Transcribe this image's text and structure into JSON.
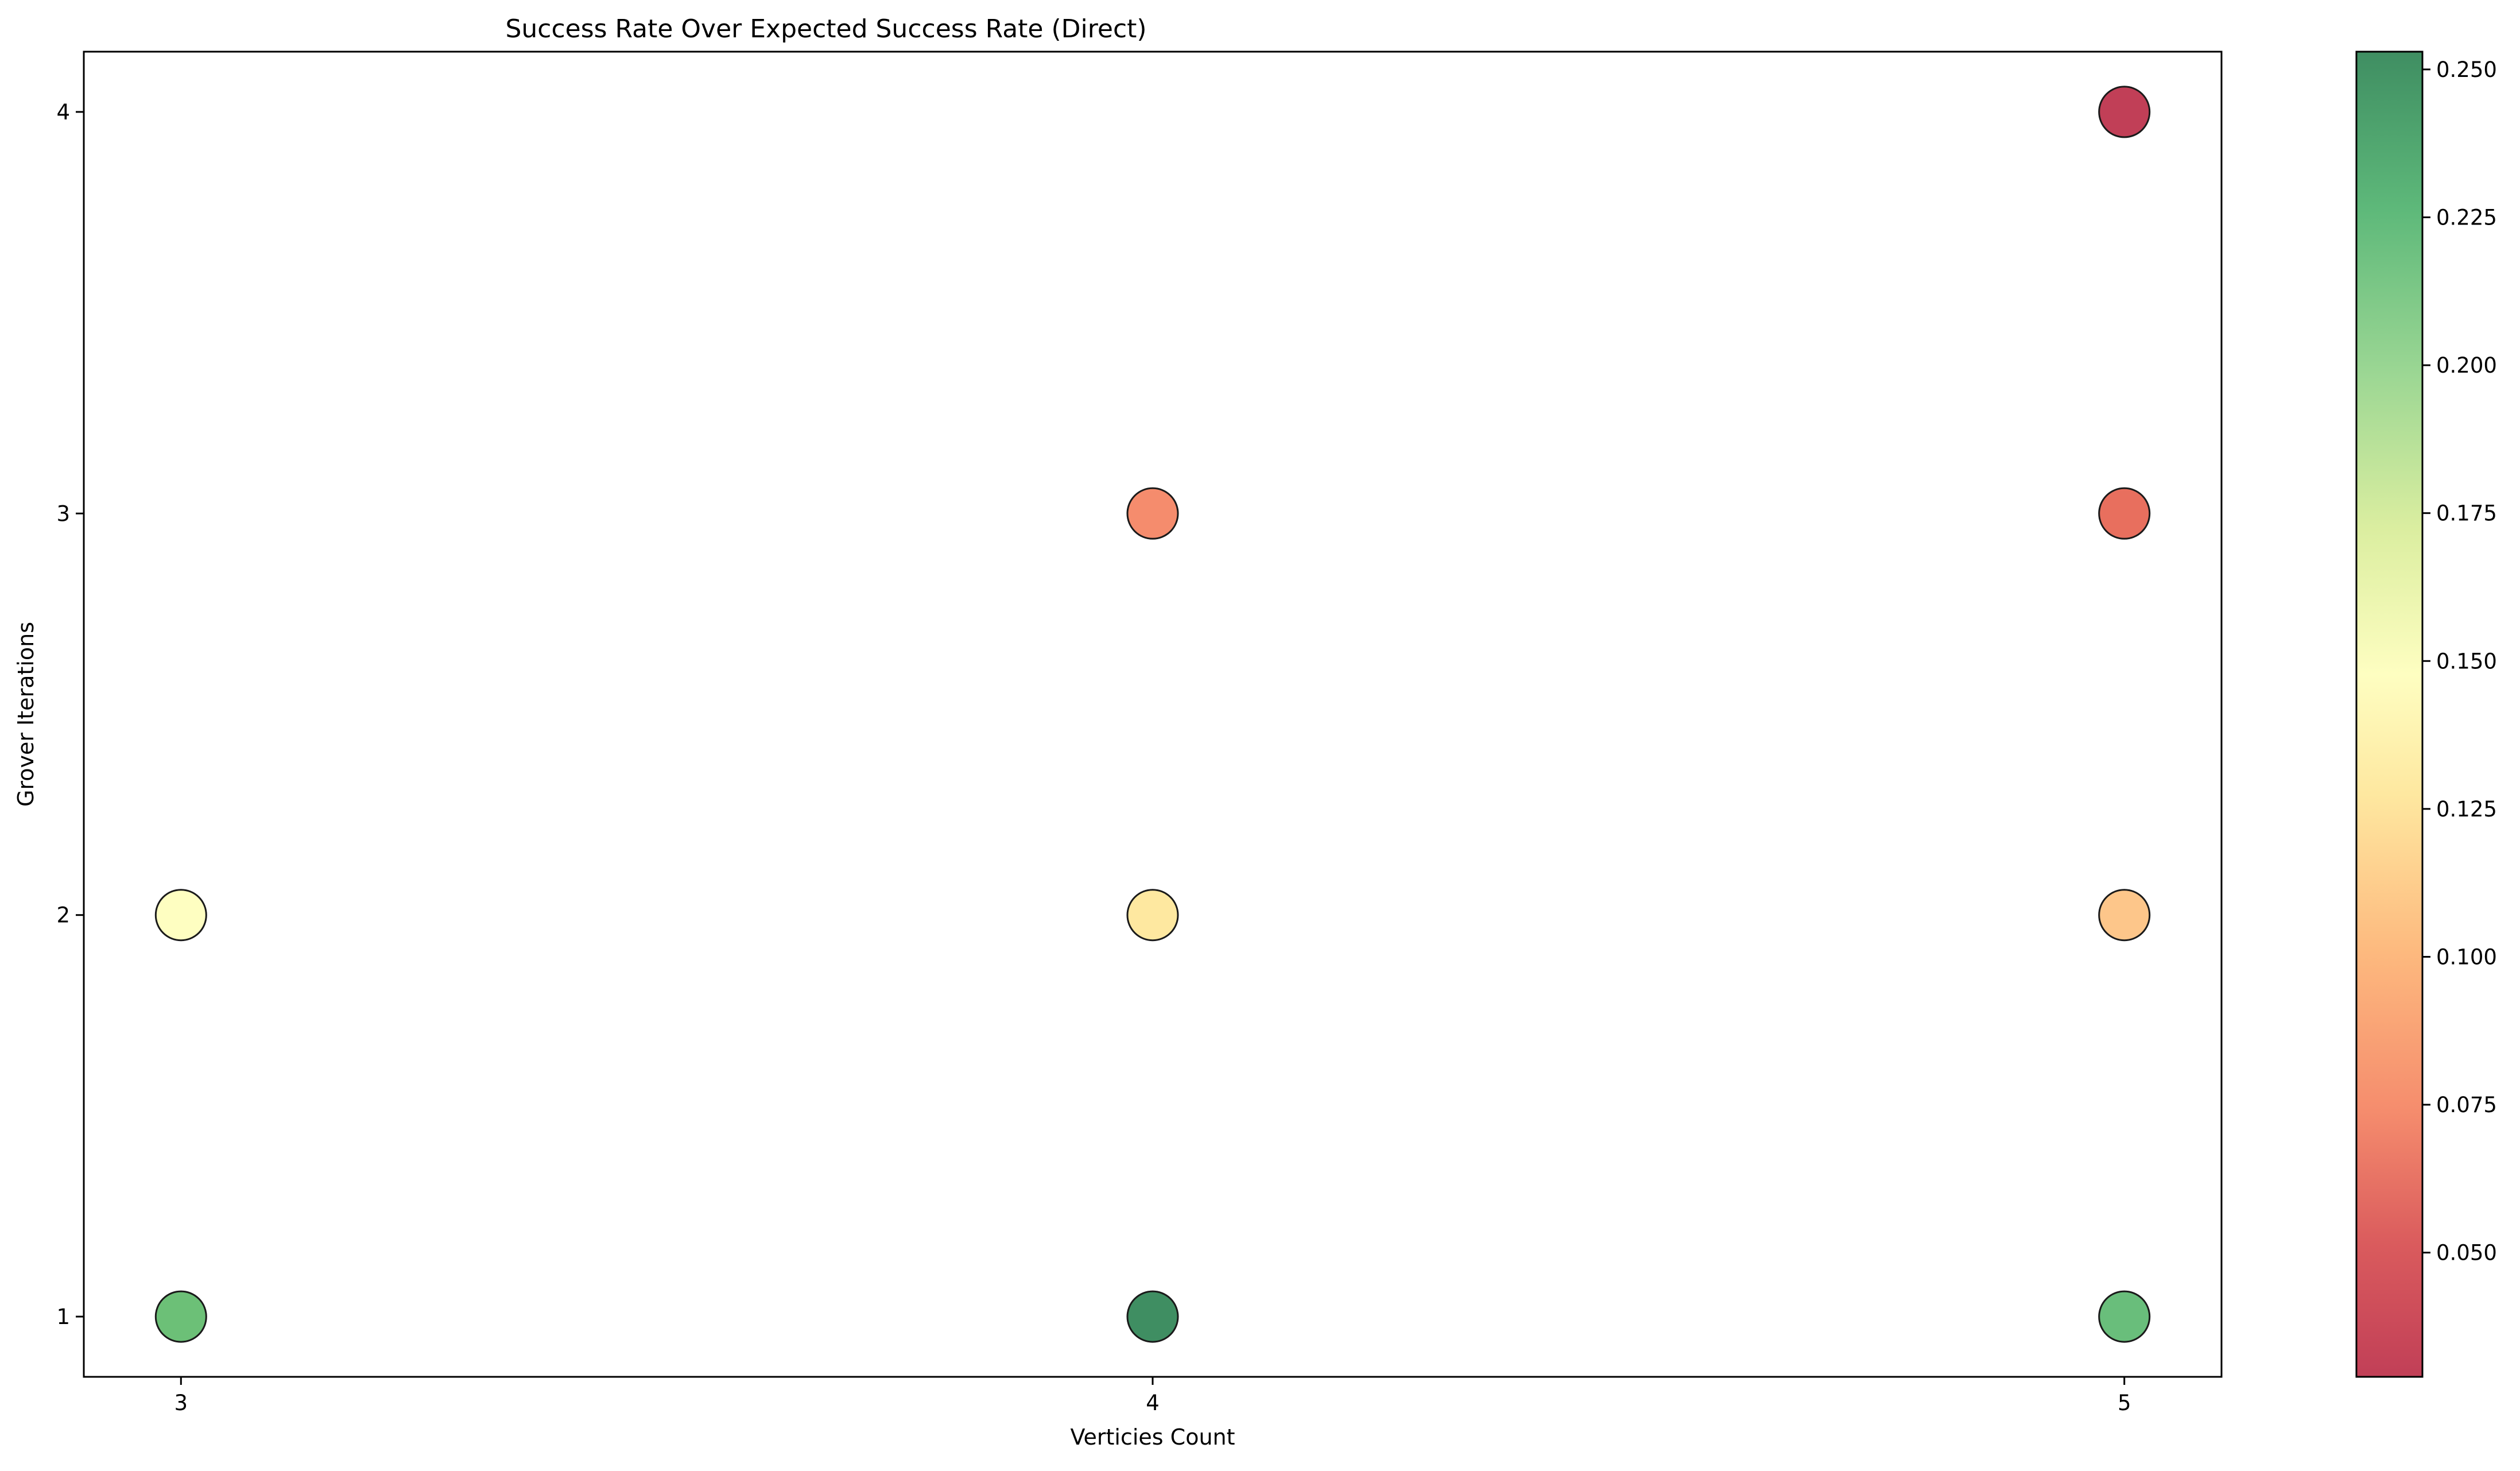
{
  "chart_data": {
    "type": "scatter",
    "title": "Success Rate Over Expected Success Rate (Direct)",
    "xlabel": "Verticies Count",
    "ylabel": "Grover Iterations",
    "xlim": [
      2.9,
      5.1
    ],
    "ylim": [
      0.85,
      4.15
    ],
    "xticks": [
      3,
      4,
      5
    ],
    "yticks": [
      1,
      2,
      3,
      4
    ],
    "grid": false,
    "colormap": "RdYlGn",
    "colorbar": {
      "min": 0.029,
      "max": 0.253,
      "ticks": [
        "0.050",
        "0.075",
        "0.100",
        "0.125",
        "0.150",
        "0.175",
        "0.200",
        "0.225",
        "0.250"
      ]
    },
    "points": [
      {
        "x": 3,
        "y": 1,
        "value": 0.222,
        "color": "#6cc077"
      },
      {
        "x": 3,
        "y": 2,
        "value": 0.15,
        "color": "#fefec1"
      },
      {
        "x": 4,
        "y": 1,
        "value": 0.253,
        "color": "#3f8e62"
      },
      {
        "x": 4,
        "y": 2,
        "value": 0.125,
        "color": "#fee8a0"
      },
      {
        "x": 4,
        "y": 3,
        "value": 0.075,
        "color": "#f58c6d"
      },
      {
        "x": 5,
        "y": 1,
        "value": 0.225,
        "color": "#69be7b"
      },
      {
        "x": 5,
        "y": 2,
        "value": 0.1,
        "color": "#fdc68a"
      },
      {
        "x": 5,
        "y": 3,
        "value": 0.06,
        "color": "#e86f5e"
      },
      {
        "x": 5,
        "y": 4,
        "value": 0.029,
        "color": "#c13f57"
      }
    ]
  }
}
